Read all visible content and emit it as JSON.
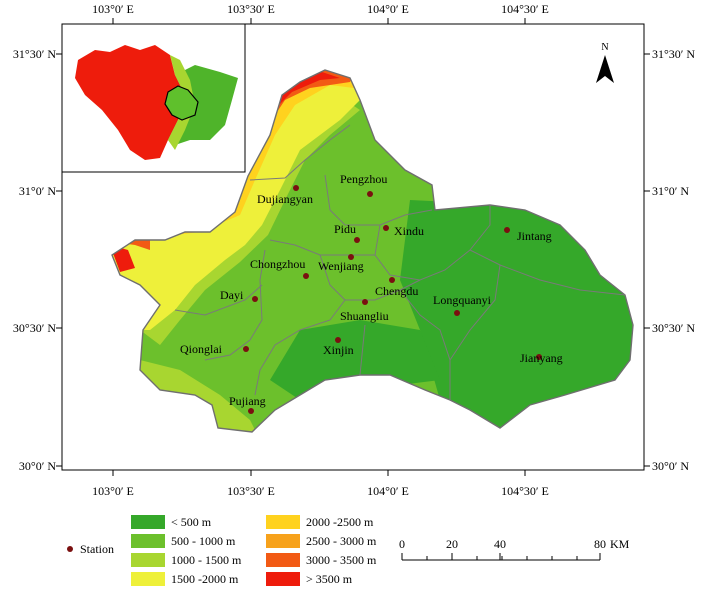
{
  "map": {
    "top_ticks": [
      "103°0′ E",
      "103°30′ E",
      "104°0′ E",
      "104°30′ E"
    ],
    "bottom_ticks": [
      "103°0′ E",
      "103°30′ E",
      "104°0′ E",
      "104°30′ E"
    ],
    "left_ticks": [
      "31°30′ N",
      "31°0′ N",
      "30°30′ N",
      "30°0′ N"
    ],
    "right_ticks": [
      "31°30′ N",
      "31°0′ N",
      "30°30′ N",
      "30°0′ N"
    ],
    "north_label": "N",
    "stations": [
      {
        "name": "Pengzhou"
      },
      {
        "name": "Dujiangyan"
      },
      {
        "name": "Pidu"
      },
      {
        "name": "Xindu"
      },
      {
        "name": "Jintang"
      },
      {
        "name": "Wenjiang"
      },
      {
        "name": "Chongzhou"
      },
      {
        "name": "Chengdu"
      },
      {
        "name": "Dayi"
      },
      {
        "name": "Shuangliu"
      },
      {
        "name": "Longquanyi"
      },
      {
        "name": "Qionglai"
      },
      {
        "name": "Xinjin"
      },
      {
        "name": "Jianyang"
      },
      {
        "name": "Pujiang"
      }
    ]
  },
  "legend": {
    "station_label": "Station",
    "station_color": "#7a1010",
    "classes": [
      {
        "label": "< 500 m",
        "color": "#35a82a"
      },
      {
        "label": "500 - 1000 m",
        "color": "#6cc02c"
      },
      {
        "label": "1000 - 1500 m",
        "color": "#a8d630"
      },
      {
        "label": "1500 -2000 m",
        "color": "#eef03a"
      },
      {
        "label": "2000 -2500 m",
        "color": "#ffd21e"
      },
      {
        "label": "2500 - 3000 m",
        "color": "#f7a21c"
      },
      {
        "label": "3000 - 3500 m",
        "color": "#f25a14"
      },
      {
        "label": "> 3500 m",
        "color": "#ee1c0c"
      }
    ]
  },
  "scalebar": {
    "ticks": [
      "0",
      "20",
      "40",
      "80"
    ],
    "unit": "KM"
  }
}
